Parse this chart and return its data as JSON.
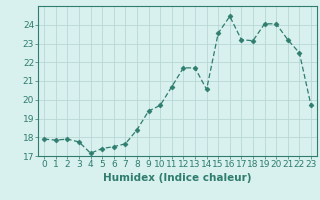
{
  "x": [
    0,
    1,
    2,
    3,
    4,
    5,
    6,
    7,
    8,
    9,
    10,
    11,
    12,
    13,
    14,
    15,
    16,
    17,
    18,
    19,
    20,
    21,
    22,
    23
  ],
  "y": [
    17.9,
    17.85,
    17.9,
    17.75,
    17.15,
    17.4,
    17.5,
    17.65,
    18.4,
    19.4,
    19.7,
    20.7,
    21.7,
    21.7,
    20.55,
    23.55,
    24.45,
    23.2,
    23.15,
    24.05,
    24.05,
    23.2,
    22.5,
    19.7
  ],
  "line_color": "#2e7d6e",
  "marker": "D",
  "marker_size": 2.5,
  "bg_color": "#d8f0ee",
  "grid_major_color": "#b8d8d4",
  "grid_minor_color": "#cce8e4",
  "xlabel": "Humidex (Indice chaleur)",
  "ylim": [
    17,
    25
  ],
  "xlim": [
    -0.5,
    23.5
  ],
  "yticks": [
    17,
    18,
    19,
    20,
    21,
    22,
    23,
    24
  ],
  "xtick_labels": [
    "0",
    "1",
    "2",
    "3",
    "4",
    "5",
    "6",
    "7",
    "8",
    "9",
    "10",
    "11",
    "12",
    "13",
    "14",
    "15",
    "16",
    "17",
    "18",
    "19",
    "20",
    "21",
    "22",
    "23"
  ],
  "axis_color": "#2e7d6e",
  "label_fontsize": 7.5,
  "tick_fontsize": 6.5
}
